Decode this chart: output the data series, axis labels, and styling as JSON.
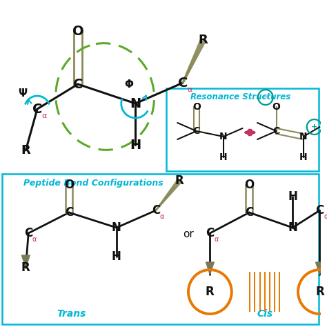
{
  "bg_color": "#ffffff",
  "olive": "#8b8b5a",
  "cyan": "#00b8d4",
  "green_dashed": "#5aaa28",
  "pink": "#c03060",
  "orange": "#e87800",
  "teal": "#009b8d",
  "text_black": "#111111",
  "resonance_title": "Resonance Structures",
  "config_title": "Peptide Bond Configurations",
  "trans_label": "Trans",
  "cis_label": "Cis",
  "or_label": "or"
}
